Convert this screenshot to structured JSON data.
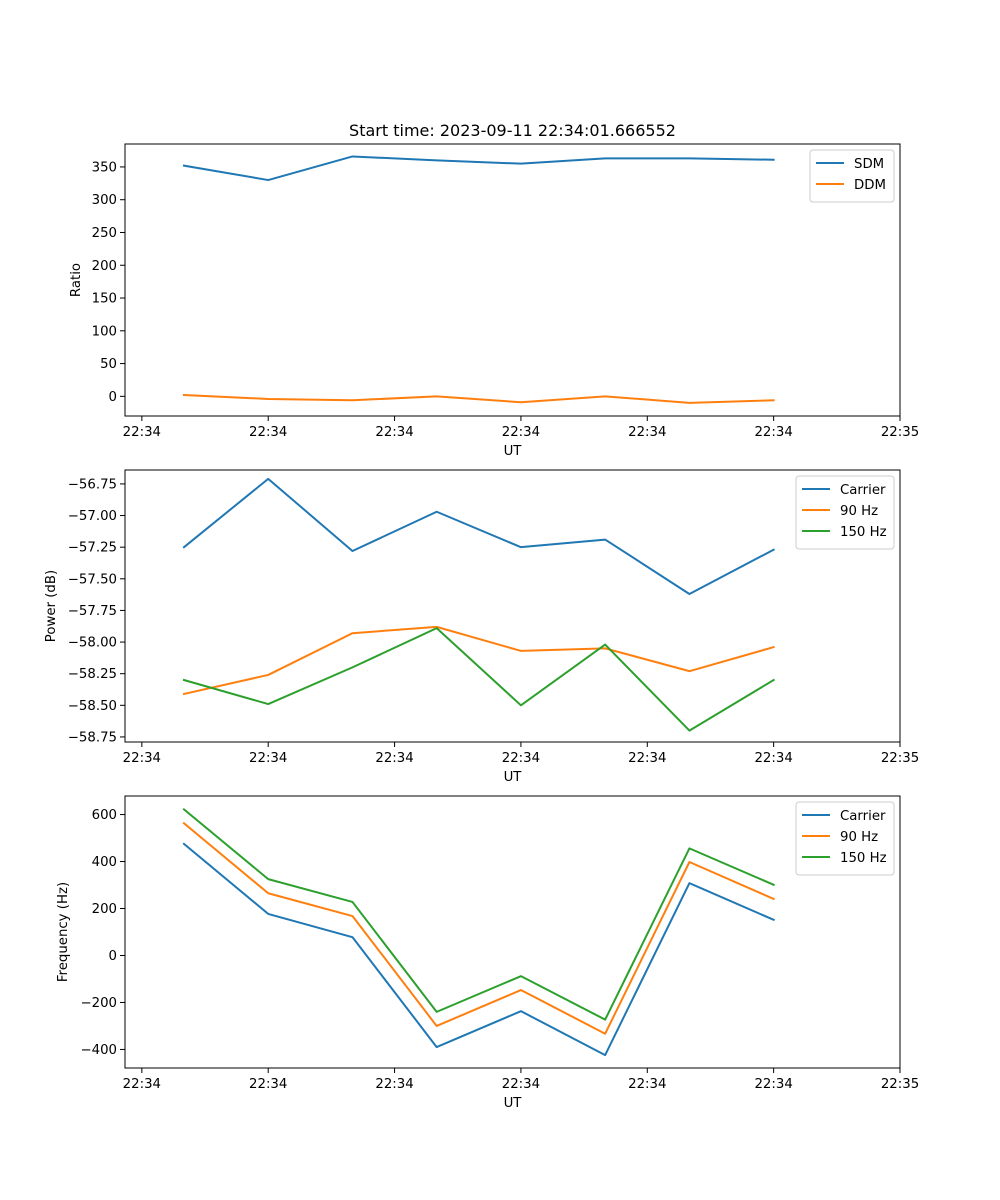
{
  "chart_data": [
    {
      "type": "line",
      "title": "Start time: 2023-09-11 22:34:01.666552",
      "xlabel": "UT",
      "ylabel": "Ratio",
      "x": [
        1,
        2,
        3,
        4,
        5,
        6,
        7,
        8
      ],
      "xlim": [
        0.3,
        9.5
      ],
      "xticks": [
        {
          "pos": 0.5,
          "label": "22:34"
        },
        {
          "pos": 2.0,
          "label": "22:34"
        },
        {
          "pos": 3.5,
          "label": "22:34"
        },
        {
          "pos": 5.0,
          "label": "22:34"
        },
        {
          "pos": 6.5,
          "label": "22:34"
        },
        {
          "pos": 8.0,
          "label": "22:34"
        },
        {
          "pos": 9.5,
          "label": "22:35"
        }
      ],
      "ylim": [
        -30,
        385
      ],
      "yticks": [
        0,
        50,
        100,
        150,
        200,
        250,
        300,
        350
      ],
      "ytick_labels": [
        "0",
        "50",
        "100",
        "150",
        "200",
        "250",
        "300",
        "350"
      ],
      "legend_position": "upper-right",
      "series": [
        {
          "name": "SDM",
          "color": "#1f77b4",
          "values": [
            352,
            330,
            366,
            360,
            355,
            363,
            363,
            361
          ]
        },
        {
          "name": "DDM",
          "color": "#ff7f0e",
          "values": [
            2,
            -4,
            -6,
            0,
            -9,
            0,
            -10,
            -6
          ]
        }
      ]
    },
    {
      "type": "line",
      "title": "",
      "xlabel": "UT",
      "ylabel": "Power (dB)",
      "x": [
        1,
        2,
        3,
        4,
        5,
        6,
        7,
        8
      ],
      "xlim": [
        0.3,
        9.5
      ],
      "xticks": [
        {
          "pos": 0.5,
          "label": "22:34"
        },
        {
          "pos": 2.0,
          "label": "22:34"
        },
        {
          "pos": 3.5,
          "label": "22:34"
        },
        {
          "pos": 5.0,
          "label": "22:34"
        },
        {
          "pos": 6.5,
          "label": "22:34"
        },
        {
          "pos": 8.0,
          "label": "22:34"
        },
        {
          "pos": 9.5,
          "label": "22:35"
        }
      ],
      "ylim": [
        -58.79,
        -56.64
      ],
      "yticks": [
        -56.75,
        -57.0,
        -57.25,
        -57.5,
        -57.75,
        -58.0,
        -58.25,
        -58.5,
        -58.75
      ],
      "ytick_labels": [
        "−56.75",
        "−57.00",
        "−57.25",
        "−57.50",
        "−57.75",
        "−58.00",
        "−58.25",
        "−58.50",
        "−58.75"
      ],
      "legend_position": "upper-right",
      "series": [
        {
          "name": "Carrier",
          "color": "#1f77b4",
          "values": [
            -57.25,
            -56.71,
            -57.28,
            -56.97,
            -57.25,
            -57.19,
            -57.62,
            -57.27
          ]
        },
        {
          "name": "90 Hz",
          "color": "#ff7f0e",
          "values": [
            -58.41,
            -58.26,
            -57.93,
            -57.88,
            -58.07,
            -58.05,
            -58.23,
            -58.04
          ]
        },
        {
          "name": "150 Hz",
          "color": "#2ca02c",
          "values": [
            -58.3,
            -58.49,
            -58.2,
            -57.89,
            -58.5,
            -58.02,
            -58.7,
            -58.3
          ]
        }
      ]
    },
    {
      "type": "line",
      "title": "",
      "xlabel": "UT",
      "ylabel": "Frequency (Hz)",
      "x": [
        1,
        2,
        3,
        4,
        5,
        6,
        7,
        8
      ],
      "xlim": [
        0.3,
        9.5
      ],
      "xticks": [
        {
          "pos": 0.5,
          "label": "22:34"
        },
        {
          "pos": 2.0,
          "label": "22:34"
        },
        {
          "pos": 3.5,
          "label": "22:34"
        },
        {
          "pos": 5.0,
          "label": "22:34"
        },
        {
          "pos": 6.5,
          "label": "22:34"
        },
        {
          "pos": 8.0,
          "label": "22:34"
        },
        {
          "pos": 9.5,
          "label": "22:35"
        }
      ],
      "ylim": [
        -479,
        679
      ],
      "yticks": [
        -400,
        -200,
        0,
        200,
        400,
        600
      ],
      "ytick_labels": [
        "−400",
        "−200",
        "0",
        "200",
        "400",
        "600"
      ],
      "legend_position": "upper-right",
      "series": [
        {
          "name": "Carrier",
          "color": "#1f77b4",
          "values": [
            475,
            177,
            78,
            -390,
            -237,
            -424,
            308,
            152
          ]
        },
        {
          "name": "90 Hz",
          "color": "#ff7f0e",
          "values": [
            563,
            265,
            168,
            -300,
            -147,
            -333,
            398,
            241
          ]
        },
        {
          "name": "150 Hz",
          "color": "#2ca02c",
          "values": [
            622,
            325,
            228,
            -240,
            -88,
            -273,
            456,
            301
          ]
        }
      ]
    }
  ]
}
